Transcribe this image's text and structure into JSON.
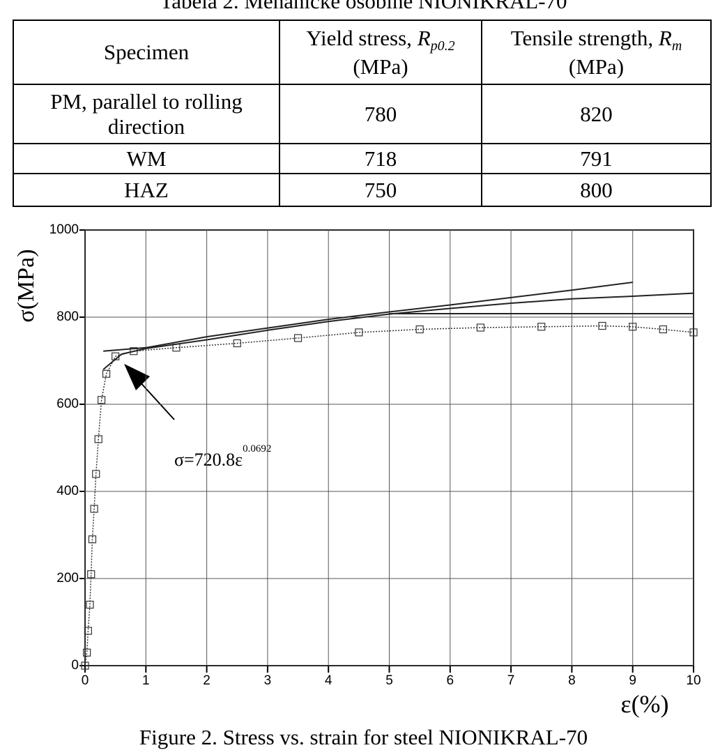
{
  "caption_top": "Tabela 2. Mehaničke osobine NIONIKRAL-70",
  "table": {
    "header": [
      {
        "text": "Specimen"
      },
      {
        "text": "Yield stress, ",
        "symbol": "R",
        "subscript": "p0.2",
        "unit": "(MPa)"
      },
      {
        "text": "Tensile strength, ",
        "symbol": "R",
        "subscript": "m",
        "unit": "(MPa)"
      }
    ],
    "rows": [
      [
        "PM, parallel to rolling direction",
        780,
        820
      ],
      [
        "WM",
        718,
        791
      ],
      [
        "HAZ",
        750,
        800
      ]
    ]
  },
  "chart_data": {
    "type": "line",
    "y_label": "σ(MPa)",
    "x_label": "ε(%)",
    "annotation": {
      "text": "σ=720.8ε",
      "exponent": "0.0692"
    },
    "xlim": [
      0,
      10
    ],
    "ylim": [
      0,
      1000
    ],
    "xticks": [
      0,
      1,
      2,
      3,
      4,
      5,
      6,
      7,
      8,
      9,
      10
    ],
    "yticks": [
      0,
      200,
      400,
      600,
      800,
      1000
    ],
    "grid": true,
    "series": [
      {
        "color": "#333333",
        "style": "dotted-markers",
        "x": [
          0,
          0.03,
          0.05,
          0.08,
          0.1,
          0.12,
          0.15,
          0.18,
          0.22,
          0.27,
          0.35,
          0.5,
          0.8,
          1.5,
          2.5,
          3.5,
          4.5,
          5.5,
          6.5,
          7.5,
          8.5,
          9,
          9.5,
          10
        ],
        "values": [
          0,
          30,
          80,
          140,
          210,
          290,
          360,
          440,
          520,
          610,
          670,
          710,
          722,
          730,
          740,
          752,
          765,
          772,
          776,
          778,
          780,
          778,
          772,
          765
        ]
      },
      {
        "color": "#222222",
        "style": "solid",
        "x": [
          0.3,
          1,
          2,
          3,
          4,
          5,
          6,
          7,
          8,
          9
        ],
        "values": [
          722,
          730,
          755,
          775,
          795,
          812,
          828,
          845,
          862,
          880
        ]
      },
      {
        "color": "#222222",
        "style": "solid",
        "x": [
          0.3,
          0.6,
          1,
          2,
          3,
          4,
          5,
          6,
          7,
          8,
          9,
          10
        ],
        "values": [
          680,
          715,
          728,
          748,
          770,
          790,
          807,
          820,
          832,
          842,
          848,
          855
        ]
      },
      {
        "color": "#222222",
        "style": "solid",
        "x": [
          5,
          10
        ],
        "values": [
          808,
          808
        ]
      }
    ]
  },
  "figure_caption": "Figure 2. Stress vs. strain for steel NIONIKRAL-70"
}
